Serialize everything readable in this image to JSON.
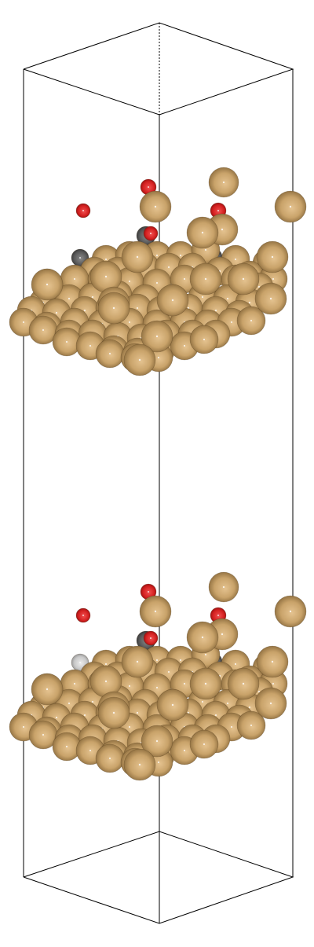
{
  "scene": {
    "kind": "atomic-structure",
    "colors": {
      "background": "#ffffff",
      "cell_edges": "#000000",
      "gold": "#c9a36a",
      "carbon": "#5a5a5a",
      "oxygen": "#d42020",
      "hydrogen": "#c8c8c8"
    },
    "element_names": {
      "gold": "gold-atom",
      "carbon": "carbon-atom",
      "oxygen": "oxygen-atom",
      "hydrogen": "hydrogen-atom"
    },
    "slab_count": 2
  }
}
